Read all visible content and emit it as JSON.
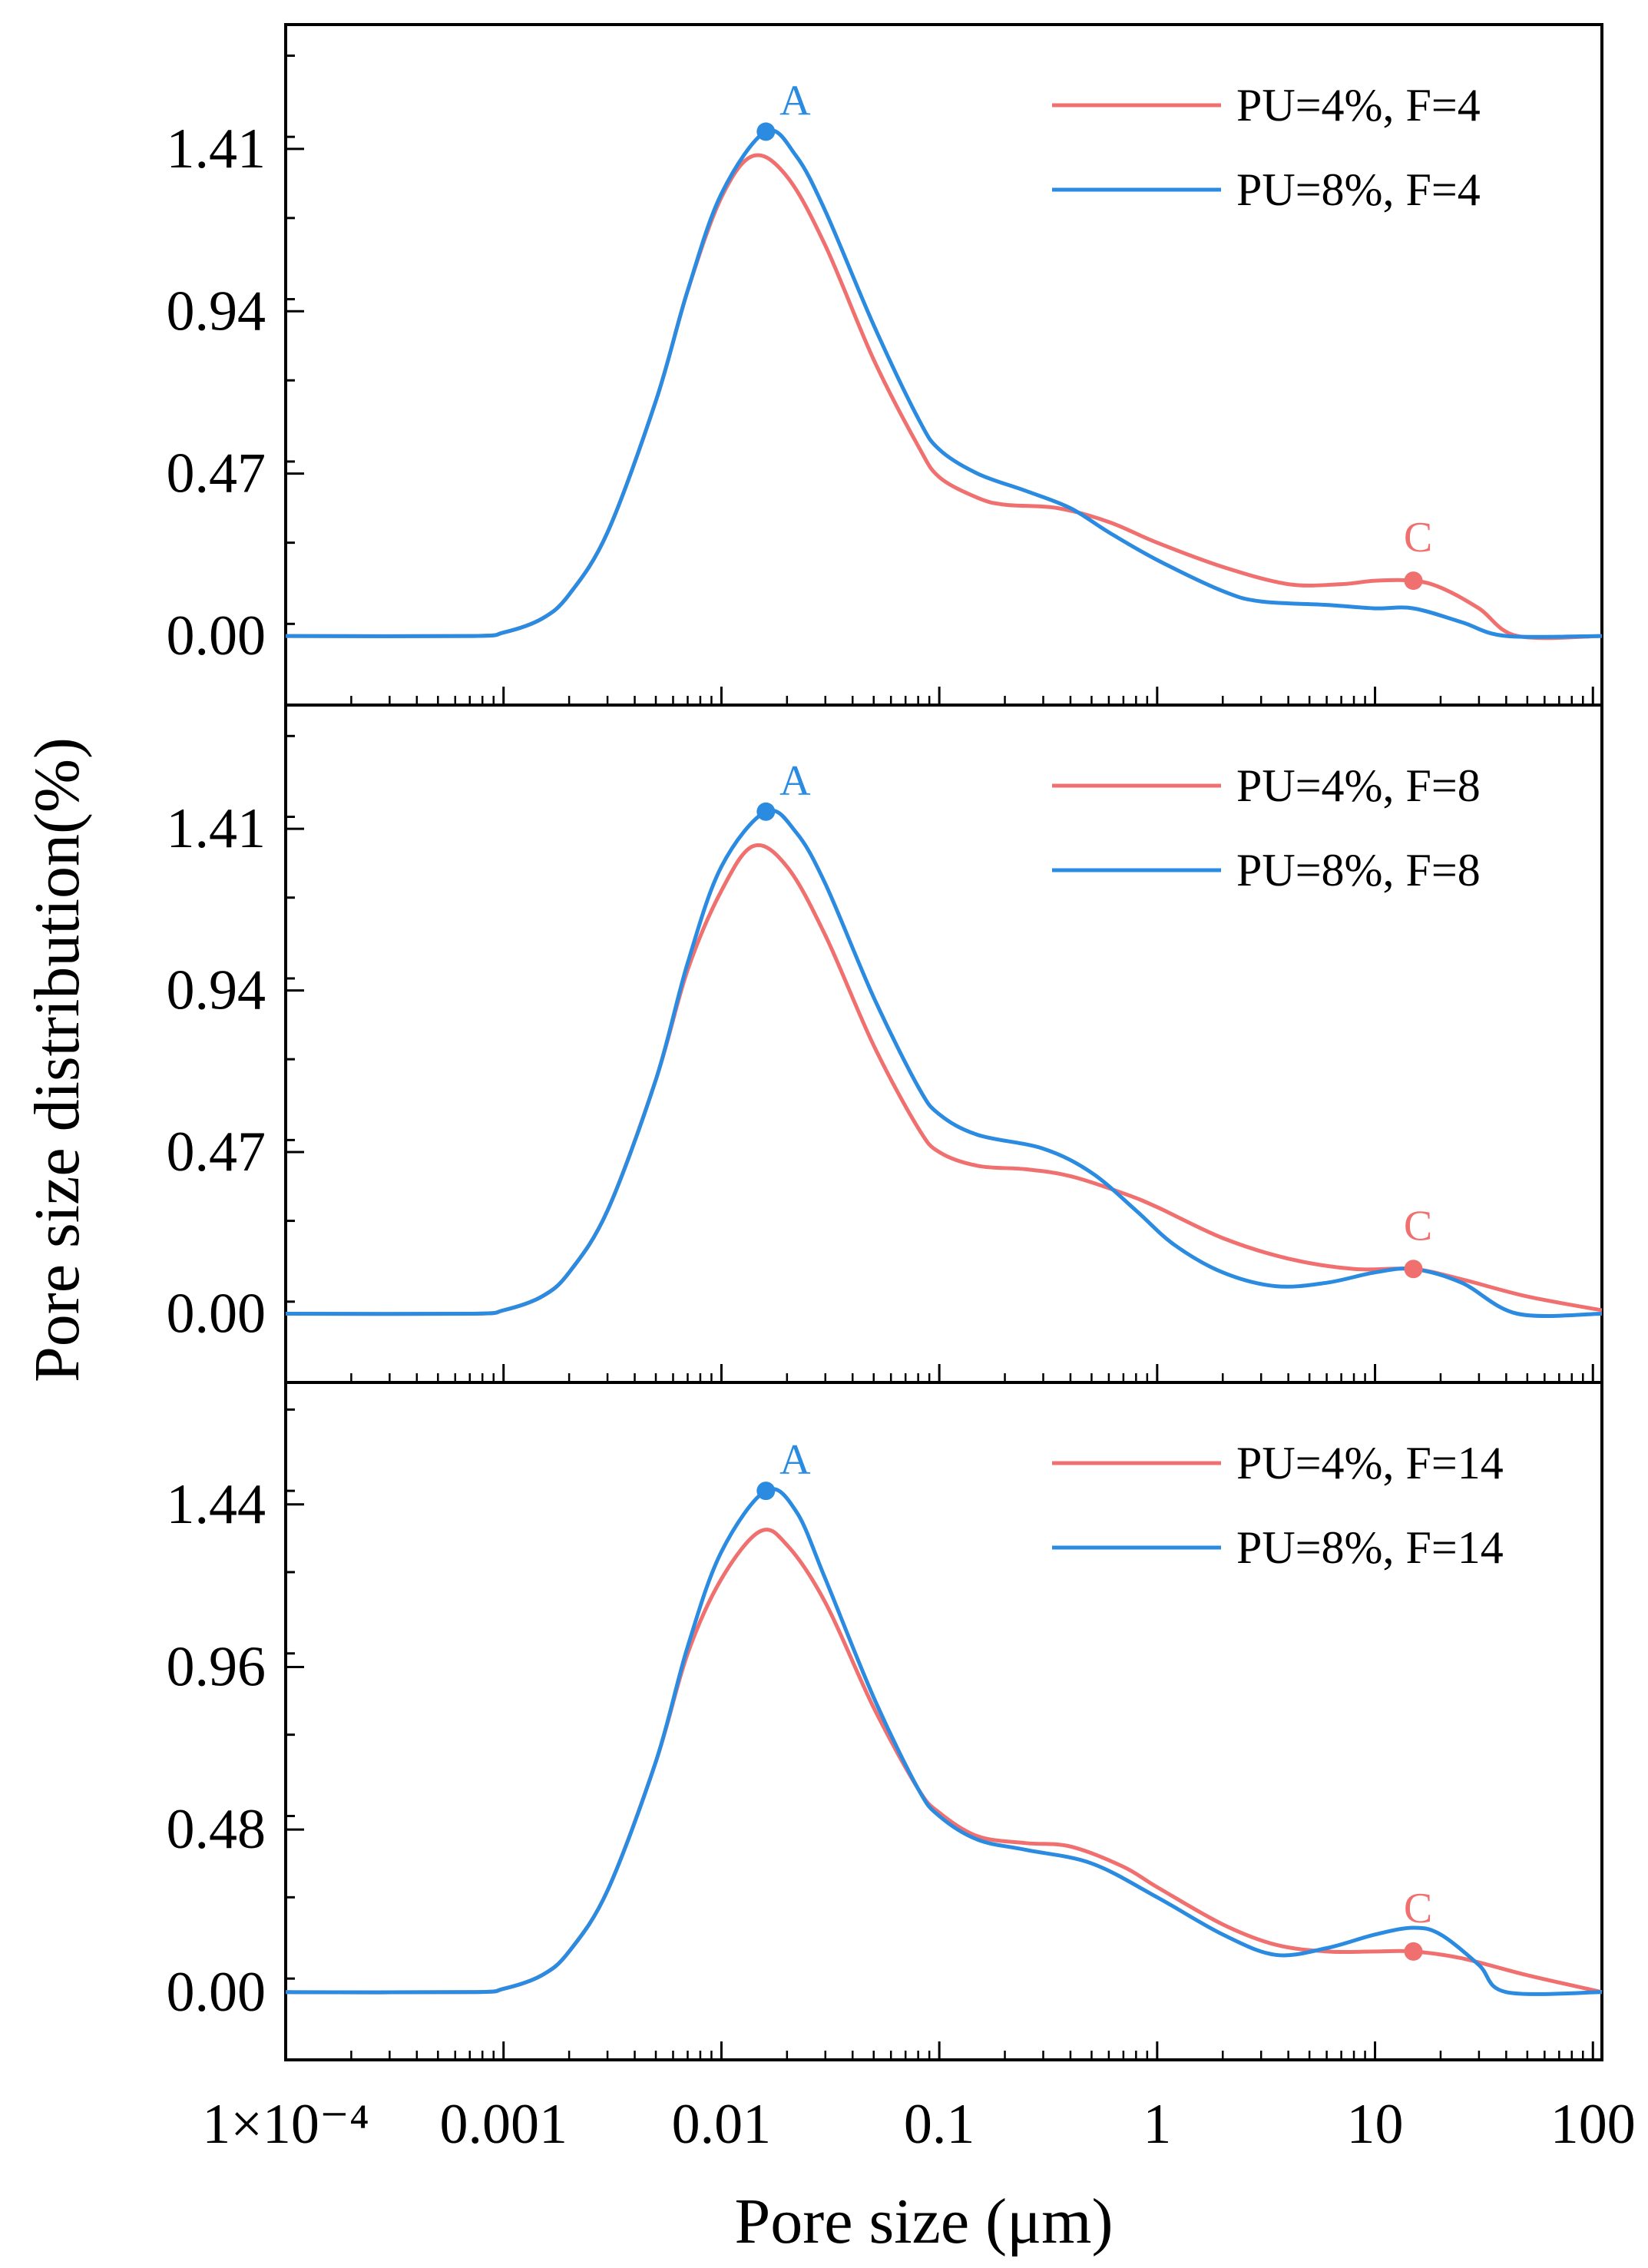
{
  "figure": {
    "ylabel": "Pore size distribution(%)",
    "xlabel": "Pore size (μm)",
    "x_ticks": [
      {
        "value": 0.0001,
        "label": "1×10⁻⁴"
      },
      {
        "value": 0.001,
        "label": "0.001"
      },
      {
        "value": 0.01,
        "label": "0.01"
      },
      {
        "value": 0.1,
        "label": "0.1"
      },
      {
        "value": 1,
        "label": "1"
      },
      {
        "value": 10,
        "label": "10"
      },
      {
        "value": 100,
        "label": "100"
      }
    ]
  },
  "colors": {
    "pu4": "#f07070",
    "pu8": "#2b8be0",
    "axis": "#000000"
  },
  "chart_data": [
    {
      "type": "line",
      "xscale": "log",
      "xlim": [
        0.0001,
        110
      ],
      "ylim": [
        -0.2,
        1.77
      ],
      "ytick_values": [
        0.0,
        0.47,
        0.94,
        1.41
      ],
      "ytick_labels": [
        "0.00",
        "0.47",
        "0.94",
        "1.41"
      ],
      "legend_position": "top-right",
      "series": [
        {
          "name": "PU=4%, F=4",
          "color_key": "pu4",
          "points": [
            [
              0.0001,
              0
            ],
            [
              0.0007,
              0
            ],
            [
              0.001,
              0.01
            ],
            [
              0.0015,
              0.05
            ],
            [
              0.002,
              0.12
            ],
            [
              0.003,
              0.3
            ],
            [
              0.005,
              0.68
            ],
            [
              0.007,
              1.0
            ],
            [
              0.01,
              1.27
            ],
            [
              0.014,
              1.39
            ],
            [
              0.02,
              1.33
            ],
            [
              0.03,
              1.13
            ],
            [
              0.05,
              0.8
            ],
            [
              0.08,
              0.55
            ],
            [
              0.1,
              0.46
            ],
            [
              0.15,
              0.4
            ],
            [
              0.2,
              0.38
            ],
            [
              0.35,
              0.37
            ],
            [
              0.6,
              0.33
            ],
            [
              1,
              0.27
            ],
            [
              2,
              0.2
            ],
            [
              4,
              0.15
            ],
            [
              7,
              0.15
            ],
            [
              10,
              0.16
            ],
            [
              15,
              0.16
            ],
            [
              20,
              0.14
            ],
            [
              30,
              0.08
            ],
            [
              45,
              0.0
            ],
            [
              110,
              0
            ]
          ]
        },
        {
          "name": "PU=8%, F=4",
          "color_key": "pu8",
          "points": [
            [
              0.0001,
              0
            ],
            [
              0.0007,
              0
            ],
            [
              0.001,
              0.01
            ],
            [
              0.0015,
              0.05
            ],
            [
              0.002,
              0.12
            ],
            [
              0.003,
              0.3
            ],
            [
              0.005,
              0.68
            ],
            [
              0.007,
              1.0
            ],
            [
              0.01,
              1.28
            ],
            [
              0.016,
              1.46
            ],
            [
              0.022,
              1.39
            ],
            [
              0.03,
              1.23
            ],
            [
              0.05,
              0.9
            ],
            [
              0.08,
              0.63
            ],
            [
              0.1,
              0.54
            ],
            [
              0.15,
              0.47
            ],
            [
              0.25,
              0.42
            ],
            [
              0.4,
              0.37
            ],
            [
              0.6,
              0.3
            ],
            [
              1,
              0.22
            ],
            [
              2,
              0.13
            ],
            [
              3,
              0.1
            ],
            [
              6,
              0.09
            ],
            [
              10,
              0.08
            ],
            [
              15,
              0.08
            ],
            [
              25,
              0.04
            ],
            [
              40,
              0.0
            ],
            [
              110,
              0
            ]
          ]
        }
      ],
      "annotations": [
        {
          "label": "A",
          "x": 0.016,
          "y": 1.46,
          "color_key": "pu8"
        },
        {
          "label": "C",
          "x": 15,
          "y": 0.16,
          "color_key": "pu4"
        }
      ]
    },
    {
      "type": "line",
      "xscale": "log",
      "xlim": [
        0.0001,
        110
      ],
      "ylim": [
        -0.2,
        1.77
      ],
      "ytick_values": [
        0.0,
        0.47,
        0.94,
        1.41
      ],
      "ytick_labels": [
        "0.00",
        "0.47",
        "0.94",
        "1.41"
      ],
      "legend_position": "top-right",
      "series": [
        {
          "name": "PU=4%, F=8",
          "color_key": "pu4",
          "points": [
            [
              0.0001,
              0
            ],
            [
              0.0007,
              0
            ],
            [
              0.001,
              0.01
            ],
            [
              0.0015,
              0.05
            ],
            [
              0.002,
              0.12
            ],
            [
              0.003,
              0.3
            ],
            [
              0.005,
              0.68
            ],
            [
              0.007,
              1.0
            ],
            [
              0.01,
              1.23
            ],
            [
              0.014,
              1.36
            ],
            [
              0.02,
              1.3
            ],
            [
              0.03,
              1.1
            ],
            [
              0.05,
              0.78
            ],
            [
              0.08,
              0.54
            ],
            [
              0.1,
              0.47
            ],
            [
              0.15,
              0.43
            ],
            [
              0.25,
              0.42
            ],
            [
              0.4,
              0.4
            ],
            [
              0.7,
              0.35
            ],
            [
              1,
              0.31
            ],
            [
              2,
              0.22
            ],
            [
              4,
              0.16
            ],
            [
              8,
              0.13
            ],
            [
              15,
              0.13
            ],
            [
              25,
              0.1
            ],
            [
              50,
              0.05
            ],
            [
              110,
              0.01
            ]
          ]
        },
        {
          "name": "PU=8%, F=8",
          "color_key": "pu8",
          "points": [
            [
              0.0001,
              0
            ],
            [
              0.0007,
              0
            ],
            [
              0.001,
              0.01
            ],
            [
              0.0015,
              0.05
            ],
            [
              0.002,
              0.12
            ],
            [
              0.003,
              0.3
            ],
            [
              0.005,
              0.68
            ],
            [
              0.007,
              1.02
            ],
            [
              0.01,
              1.3
            ],
            [
              0.016,
              1.46
            ],
            [
              0.022,
              1.4
            ],
            [
              0.03,
              1.25
            ],
            [
              0.05,
              0.92
            ],
            [
              0.08,
              0.66
            ],
            [
              0.1,
              0.58
            ],
            [
              0.15,
              0.52
            ],
            [
              0.3,
              0.48
            ],
            [
              0.5,
              0.41
            ],
            [
              0.8,
              0.3
            ],
            [
              1.2,
              0.2
            ],
            [
              2,
              0.12
            ],
            [
              3.5,
              0.08
            ],
            [
              6,
              0.09
            ],
            [
              10,
              0.12
            ],
            [
              15,
              0.13
            ],
            [
              25,
              0.09
            ],
            [
              45,
              0.0
            ],
            [
              110,
              0
            ]
          ]
        }
      ],
      "annotations": [
        {
          "label": "A",
          "x": 0.016,
          "y": 1.46,
          "color_key": "pu8"
        },
        {
          "label": "C",
          "x": 15,
          "y": 0.13,
          "color_key": "pu4"
        }
      ]
    },
    {
      "type": "line",
      "xscale": "log",
      "xlim": [
        0.0001,
        110
      ],
      "ylim": [
        -0.2,
        1.8
      ],
      "ytick_values": [
        0.0,
        0.48,
        0.96,
        1.44
      ],
      "ytick_labels": [
        "0.00",
        "0.48",
        "0.96",
        "1.44"
      ],
      "legend_position": "top-right",
      "series": [
        {
          "name": "PU=4%, F=14",
          "color_key": "pu4",
          "points": [
            [
              0.0001,
              0
            ],
            [
              0.0007,
              0
            ],
            [
              0.001,
              0.01
            ],
            [
              0.0015,
              0.05
            ],
            [
              0.002,
              0.12
            ],
            [
              0.003,
              0.3
            ],
            [
              0.005,
              0.68
            ],
            [
              0.007,
              1.0
            ],
            [
              0.01,
              1.22
            ],
            [
              0.015,
              1.36
            ],
            [
              0.02,
              1.32
            ],
            [
              0.03,
              1.15
            ],
            [
              0.05,
              0.84
            ],
            [
              0.08,
              0.6
            ],
            [
              0.1,
              0.53
            ],
            [
              0.15,
              0.46
            ],
            [
              0.25,
              0.44
            ],
            [
              0.4,
              0.43
            ],
            [
              0.7,
              0.37
            ],
            [
              1,
              0.31
            ],
            [
              2,
              0.2
            ],
            [
              3.5,
              0.14
            ],
            [
              6,
              0.12
            ],
            [
              10,
              0.12
            ],
            [
              15,
              0.12
            ],
            [
              25,
              0.1
            ],
            [
              50,
              0.05
            ],
            [
              110,
              0.0
            ]
          ]
        },
        {
          "name": "PU=8%, F=14",
          "color_key": "pu8",
          "points": [
            [
              0.0001,
              0
            ],
            [
              0.0007,
              0
            ],
            [
              0.001,
              0.01
            ],
            [
              0.0015,
              0.05
            ],
            [
              0.002,
              0.12
            ],
            [
              0.003,
              0.3
            ],
            [
              0.005,
              0.68
            ],
            [
              0.007,
              1.02
            ],
            [
              0.01,
              1.3
            ],
            [
              0.016,
              1.48
            ],
            [
              0.022,
              1.42
            ],
            [
              0.03,
              1.22
            ],
            [
              0.05,
              0.87
            ],
            [
              0.08,
              0.6
            ],
            [
              0.1,
              0.52
            ],
            [
              0.15,
              0.45
            ],
            [
              0.25,
              0.42
            ],
            [
              0.5,
              0.38
            ],
            [
              1,
              0.28
            ],
            [
              2,
              0.17
            ],
            [
              3.5,
              0.11
            ],
            [
              6,
              0.13
            ],
            [
              10,
              0.17
            ],
            [
              15,
              0.19
            ],
            [
              20,
              0.17
            ],
            [
              30,
              0.08
            ],
            [
              40,
              0.0
            ],
            [
              110,
              0
            ]
          ]
        }
      ],
      "annotations": [
        {
          "label": "A",
          "x": 0.016,
          "y": 1.48,
          "color_key": "pu8"
        },
        {
          "label": "C",
          "x": 15,
          "y": 0.12,
          "color_key": "pu4"
        }
      ]
    }
  ]
}
